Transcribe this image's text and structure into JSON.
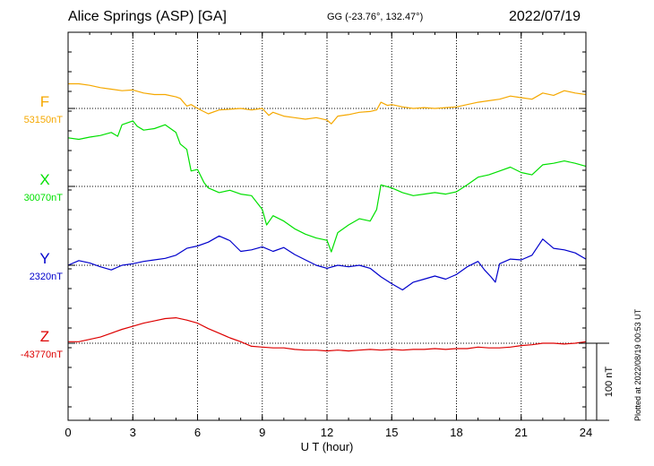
{
  "header": {
    "station": "Alice Springs (ASP)  [GA]",
    "coords": "GG (-23.76°, 132.47°)",
    "date": "2022/07/19"
  },
  "footer": {
    "plotted": "Plotted at 2022/08/19 00:53 UT"
  },
  "colors": {
    "F": "#f5a800",
    "X": "#00e000",
    "Y": "#0000cc",
    "Z": "#dd0000",
    "grid": "#000000"
  },
  "chart_data": {
    "type": "line",
    "xlabel": "U T (hour)",
    "xlim": [
      0,
      24
    ],
    "xticks": [
      "0",
      "3",
      "6",
      "9",
      "12",
      "15",
      "18",
      "21",
      "24"
    ],
    "scale_bar_label": "100 nT",
    "series": [
      {
        "name": "F",
        "baseline_label": "53150nT",
        "baseline": 53150,
        "x": [
          0,
          0.5,
          1,
          1.5,
          2,
          2.5,
          3,
          3.5,
          4,
          4.5,
          5,
          5.2,
          5.5,
          5.7,
          6,
          6.5,
          7,
          7.5,
          8,
          8.5,
          9,
          9.3,
          9.5,
          10,
          10.5,
          11,
          11.5,
          12,
          12.2,
          12.5,
          13,
          13.5,
          14,
          14.3,
          14.5,
          14.8,
          15,
          15.5,
          16,
          16.5,
          17,
          17.5,
          18,
          18.5,
          19,
          19.5,
          20,
          20.5,
          21,
          21.5,
          22,
          22.5,
          23,
          23.5,
          24
        ],
        "y": [
          53182,
          53182,
          53180,
          53177,
          53175,
          53173,
          53174,
          53170,
          53168,
          53168,
          53165,
          53163,
          53153,
          53155,
          53150,
          53143,
          53148,
          53149,
          53150,
          53148,
          53150,
          53141,
          53145,
          53140,
          53138,
          53136,
          53138,
          53135,
          53130,
          53140,
          53142,
          53145,
          53146,
          53148,
          53158,
          53154,
          53155,
          53152,
          53150,
          53151,
          53150,
          53151,
          53152,
          53155,
          53158,
          53160,
          53162,
          53166,
          53164,
          53162,
          53170,
          53167,
          53173,
          53170,
          53168
        ]
      },
      {
        "name": "X",
        "baseline_label": "30070nT",
        "baseline": 30070,
        "x": [
          0,
          0.5,
          1,
          1.5,
          2,
          2.3,
          2.5,
          3,
          3.2,
          3.5,
          4,
          4.5,
          5,
          5.2,
          5.5,
          5.7,
          6,
          6.3,
          6.5,
          7,
          7.5,
          8,
          8.5,
          9,
          9.2,
          9.5,
          10,
          10.5,
          11,
          11.5,
          12,
          12.2,
          12.5,
          13,
          13.5,
          14,
          14.3,
          14.5,
          15,
          15.5,
          16,
          16.5,
          17,
          17.5,
          18,
          18.5,
          19,
          19.5,
          20,
          20.5,
          21,
          21.5,
          22,
          22.5,
          23,
          23.5,
          24
        ],
        "y": [
          30133,
          30131,
          30134,
          30136,
          30140,
          30135,
          30150,
          30155,
          30148,
          30143,
          30145,
          30150,
          30140,
          30125,
          30118,
          30090,
          30092,
          30075,
          30068,
          30062,
          30065,
          30060,
          30058,
          30040,
          30020,
          30032,
          30025,
          30015,
          30008,
          30003,
          30000,
          29985,
          30010,
          30020,
          30028,
          30025,
          30040,
          30072,
          30068,
          30062,
          30058,
          30060,
          30062,
          30060,
          30063,
          30072,
          30082,
          30085,
          30090,
          30095,
          30088,
          30085,
          30098,
          30100,
          30103,
          30100,
          30096
        ]
      },
      {
        "name": "Y",
        "baseline_label": "2320nT",
        "baseline": 2320,
        "x": [
          0,
          0.5,
          1,
          1.5,
          2,
          2.5,
          3,
          3.5,
          4,
          4.5,
          5,
          5.5,
          6,
          6.5,
          7,
          7.5,
          8,
          8.5,
          9,
          9.5,
          10,
          10.5,
          11,
          11.5,
          12,
          12.5,
          13,
          13.5,
          14,
          14.5,
          15,
          15.5,
          16,
          16.5,
          17,
          17.5,
          18,
          18.5,
          19,
          19.3,
          19.6,
          19.8,
          20,
          20.5,
          21,
          21.5,
          22,
          22.5,
          23,
          23.5,
          24
        ],
        "y": [
          2320,
          2326,
          2323,
          2318,
          2314,
          2320,
          2322,
          2325,
          2327,
          2329,
          2333,
          2342,
          2345,
          2350,
          2358,
          2352,
          2338,
          2340,
          2344,
          2338,
          2343,
          2334,
          2327,
          2320,
          2316,
          2320,
          2318,
          2320,
          2316,
          2305,
          2296,
          2288,
          2298,
          2302,
          2306,
          2302,
          2308,
          2318,
          2325,
          2314,
          2305,
          2298,
          2322,
          2328,
          2327,
          2333,
          2354,
          2342,
          2340,
          2336,
          2328
        ]
      },
      {
        "name": "Z",
        "baseline_label": "-43770nT",
        "baseline": -43770,
        "x": [
          0,
          0.5,
          1,
          1.5,
          2,
          2.5,
          3,
          3.5,
          4,
          4.5,
          5,
          5.5,
          6,
          6.5,
          7,
          7.5,
          8,
          8.5,
          9,
          9.5,
          10,
          10.5,
          11,
          11.5,
          12,
          12.5,
          13,
          13.5,
          14,
          14.5,
          15,
          15.5,
          16,
          16.5,
          17,
          17.5,
          18,
          18.5,
          19,
          19.5,
          20,
          20.5,
          21,
          21.5,
          22,
          22.5,
          23,
          23.5,
          24
        ],
        "y": [
          -43768,
          -43768,
          -43765,
          -43762,
          -43757,
          -43752,
          -43748,
          -43744,
          -43741,
          -43738,
          -43737,
          -43740,
          -43744,
          -43751,
          -43757,
          -43763,
          -43768,
          -43774,
          -43775,
          -43776,
          -43776,
          -43778,
          -43779,
          -43779,
          -43780,
          -43779,
          -43780,
          -43779,
          -43778,
          -43779,
          -43778,
          -43779,
          -43778,
          -43778,
          -43777,
          -43778,
          -43777,
          -43777,
          -43775,
          -43776,
          -43776,
          -43775,
          -43773,
          -43772,
          -43770,
          -43770,
          -43771,
          -43770,
          -43768
        ]
      }
    ]
  }
}
